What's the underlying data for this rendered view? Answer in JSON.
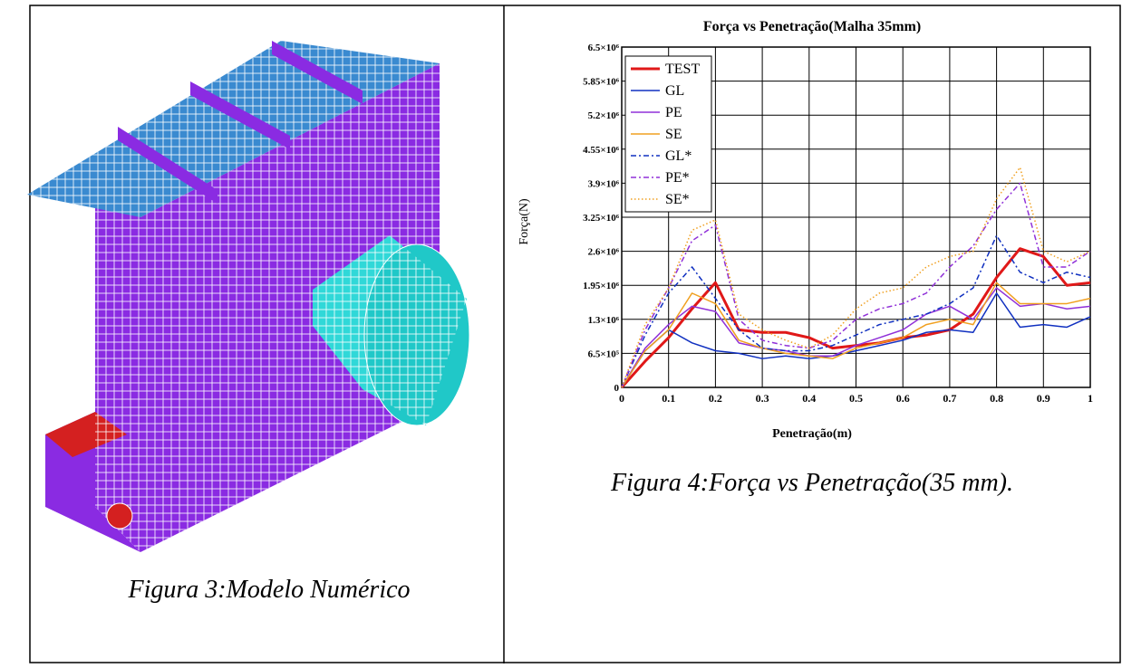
{
  "figure_left": {
    "caption": "Figura 3:Modelo Numérico"
  },
  "chart_data": {
    "type": "line",
    "title": "Força vs Penetração(Malha 35mm)",
    "x_label": "Penetração(m)",
    "y_label": "Força(N)",
    "x": [
      0,
      0.05,
      0.1,
      0.15,
      0.2,
      0.25,
      0.3,
      0.35,
      0.4,
      0.45,
      0.5,
      0.55,
      0.6,
      0.65,
      0.7,
      0.75,
      0.8,
      0.85,
      0.9,
      0.95,
      1
    ],
    "series": [
      {
        "name": "TEST",
        "color": "#e01818",
        "style": "solid",
        "width": 3,
        "values": [
          0,
          500000,
          950000,
          1500000,
          2000000,
          1100000,
          1050000,
          1050000,
          950000,
          750000,
          800000,
          850000,
          950000,
          1000000,
          1100000,
          1400000,
          2100000,
          2650000,
          2500000,
          1950000,
          2000000
        ]
      },
      {
        "name": "GL",
        "color": "#1030c0",
        "style": "solid",
        "width": 1.5,
        "values": [
          0,
          700000,
          1100000,
          850000,
          700000,
          650000,
          550000,
          600000,
          550000,
          600000,
          700000,
          800000,
          900000,
          1050000,
          1100000,
          1050000,
          1800000,
          1150000,
          1200000,
          1150000,
          1350000
        ]
      },
      {
        "name": "PE",
        "color": "#9030d8",
        "style": "solid",
        "width": 1.5,
        "values": [
          0,
          750000,
          1200000,
          1550000,
          1450000,
          850000,
          750000,
          700000,
          600000,
          600000,
          800000,
          950000,
          1100000,
          1400000,
          1550000,
          1300000,
          1900000,
          1550000,
          1600000,
          1500000,
          1550000
        ]
      },
      {
        "name": "SE",
        "color": "#f0a020",
        "style": "solid",
        "width": 1.5,
        "values": [
          0,
          700000,
          1100000,
          1800000,
          1600000,
          900000,
          750000,
          650000,
          600000,
          550000,
          750000,
          850000,
          950000,
          1200000,
          1300000,
          1200000,
          2000000,
          1600000,
          1600000,
          1600000,
          1700000
        ]
      },
      {
        "name": "GL*",
        "color": "#1030c0",
        "style": "dashed",
        "width": 1.5,
        "values": [
          0,
          1000000,
          1800000,
          2300000,
          1700000,
          1100000,
          750000,
          700000,
          700000,
          800000,
          1000000,
          1200000,
          1300000,
          1400000,
          1600000,
          1900000,
          2900000,
          2200000,
          2000000,
          2200000,
          2100000
        ]
      },
      {
        "name": "PE*",
        "color": "#9030d8",
        "style": "dashed",
        "width": 1.5,
        "values": [
          0,
          1100000,
          1900000,
          2800000,
          3100000,
          1300000,
          900000,
          800000,
          750000,
          900000,
          1300000,
          1500000,
          1600000,
          1800000,
          2300000,
          2700000,
          3400000,
          3900000,
          2300000,
          2300000,
          2600000
        ]
      },
      {
        "name": "SE*",
        "color": "#f0a020",
        "style": "dotted",
        "width": 1.5,
        "values": [
          0,
          1200000,
          1900000,
          3000000,
          3200000,
          1400000,
          1100000,
          900000,
          750000,
          1000000,
          1500000,
          1800000,
          1900000,
          2300000,
          2500000,
          2600000,
          3600000,
          4200000,
          2600000,
          2400000,
          2600000
        ]
      }
    ],
    "xlim": [
      0,
      1
    ],
    "xticks": [
      0,
      0.1,
      0.2,
      0.3,
      0.4,
      0.5,
      0.6,
      0.7,
      0.8,
      0.9,
      1
    ],
    "ylim": [
      0,
      6500000
    ],
    "yticks": [
      0,
      {
        "value": 650000,
        "label": "6.5×10⁵"
      },
      {
        "value": 1300000,
        "label": "1.3×10⁶"
      },
      {
        "value": 1950000,
        "label": "1.95×10⁶"
      },
      {
        "value": 2600000,
        "label": "2.6×10⁶"
      },
      {
        "value": 3250000,
        "label": "3.25×10⁶"
      },
      {
        "value": 3900000,
        "label": "3.9×10⁶"
      },
      {
        "value": 4550000,
        "label": "4.55×10⁶"
      },
      {
        "value": 5200000,
        "label": "5.2×10⁶"
      },
      {
        "value": 5850000,
        "label": "5.85×10⁶"
      },
      {
        "value": 6500000,
        "label": "6.5×10⁶"
      }
    ],
    "grid": true,
    "legend": "top-left",
    "caption": "Figura 4:Força vs Penetração(35 mm)."
  }
}
